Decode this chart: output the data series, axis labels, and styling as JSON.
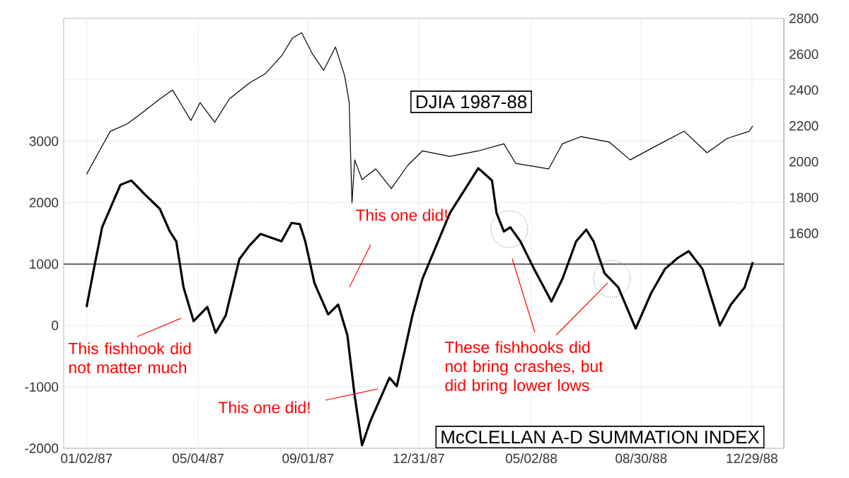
{
  "chart_data": {
    "type": "line",
    "xlim": [
      "1986-12-08",
      "1989-02-02"
    ],
    "xticks": [
      {
        "value": "1987-01-02",
        "label": "01/02/87"
      },
      {
        "value": "1987-05-04",
        "label": "05/04/87"
      },
      {
        "value": "1987-09-01",
        "label": "09/01/87"
      },
      {
        "value": "1987-12-31",
        "label": "12/31/87"
      },
      {
        "value": "1988-05-02",
        "label": "05/02/88"
      },
      {
        "value": "1988-08-30",
        "label": "08/30/88"
      },
      {
        "value": "1988-12-29",
        "label": "12/29/88"
      }
    ],
    "ylim": [
      -2000,
      5000
    ],
    "yticks": [
      -2000,
      -1000,
      0,
      1000,
      2000,
      3000,
      {
        "value": 4000,
        "label": null
      }
    ],
    "y2lim": [
      400,
      2800
    ],
    "y2ticks": [
      1600,
      1800,
      2000,
      2200,
      2400,
      2600,
      2800
    ],
    "grid": true,
    "ref_lines": [
      {
        "axis": "y",
        "value": 1000,
        "color": "#333333"
      }
    ],
    "series": [
      {
        "name": "McCLELLAN A-D SUMMATION INDEX",
        "color": "#000000",
        "x": [
          "1987-01-02",
          "1987-01-11",
          "1987-01-16",
          "1987-01-19",
          "1987-02-08",
          "1987-02-20",
          "1987-03-07",
          "1987-03-23",
          "1987-04-03",
          "1987-04-10",
          "1987-04-18",
          "1987-04-29",
          "1987-05-14",
          "1987-05-23",
          "1987-06-03",
          "1987-06-18",
          "1987-06-29",
          "1987-07-11",
          "1987-08-03",
          "1987-08-14",
          "1987-08-23",
          "1987-08-29",
          "1987-09-08",
          "1987-09-23",
          "1987-10-04",
          "1987-10-14",
          "1987-10-22",
          "1987-10-30",
          "1987-11-08",
          "1987-11-29",
          "1987-12-07",
          "1987-12-24",
          "1988-01-04",
          "1988-02-03",
          "1988-03-05",
          "1988-03-20",
          "1988-03-25",
          "1988-04-02",
          "1988-04-09",
          "1988-04-20",
          "1988-05-05",
          "1988-05-24",
          "1988-06-05",
          "1988-06-20",
          "1988-07-01",
          "1988-07-09",
          "1988-07-21",
          "1988-08-05",
          "1988-08-24",
          "1988-09-10",
          "1988-09-25",
          "1988-10-09",
          "1988-10-21",
          "1988-11-05",
          "1988-11-24",
          "1988-12-06",
          "1988-12-21",
          "1988-12-30"
        ],
        "values": [
          300,
          1000,
          1370,
          1600,
          2290,
          2360,
          2130,
          1900,
          1530,
          1370,
          620,
          70,
          300,
          -120,
          160,
          1080,
          1300,
          1490,
          1370,
          1670,
          1650,
          1370,
          690,
          180,
          340,
          -160,
          -1150,
          -1950,
          -1560,
          -850,
          -990,
          160,
          760,
          1830,
          2560,
          2360,
          1830,
          1530,
          1600,
          1370,
          920,
          390,
          760,
          1370,
          1560,
          1370,
          850,
          620,
          -50,
          530,
          920,
          1100,
          1210,
          920,
          0,
          340,
          620,
          1030
        ]
      },
      {
        "name": "DJIA  1987-88",
        "color": "#000000",
        "axis": "y2",
        "x": [
          "1987-01-02",
          "1987-01-16",
          "1987-01-28",
          "1987-02-15",
          "1987-03-03",
          "1987-03-23",
          "1987-04-06",
          "1987-04-26",
          "1987-05-06",
          "1987-05-22",
          "1987-06-07",
          "1987-06-29",
          "1987-07-16",
          "1987-08-03",
          "1987-08-15",
          "1987-08-25",
          "1987-09-06",
          "1987-09-18",
          "1987-10-01",
          "1987-10-11",
          "1987-10-16",
          "1987-10-19",
          "1987-10-22",
          "1987-10-30",
          "1987-11-14",
          "1987-12-01",
          "1987-12-19",
          "1988-01-04",
          "1988-02-03",
          "1988-03-05",
          "1988-04-02",
          "1988-04-15",
          "1988-05-21",
          "1988-06-05",
          "1988-06-25",
          "1988-07-26",
          "1988-08-18",
          "1988-09-16",
          "1988-10-16",
          "1988-11-10",
          "1988-12-02",
          "1988-12-26",
          "1988-12-30"
        ],
        "values": [
          1930,
          2060,
          2170,
          2210,
          2270,
          2350,
          2400,
          2230,
          2330,
          2220,
          2350,
          2440,
          2490,
          2590,
          2690,
          2720,
          2600,
          2510,
          2640,
          2480,
          2330,
          1770,
          2010,
          1900,
          1960,
          1850,
          1980,
          2060,
          2030,
          2060,
          2100,
          1990,
          1960,
          2100,
          2140,
          2110,
          2010,
          2090,
          2170,
          2050,
          2130,
          2170,
          2200
        ]
      }
    ],
    "annotations": [
      "This one did!",
      "This fishhook did not matter much",
      "This one did!",
      {
        "text": "These fishhooks did not bring crashes, but did bring lower lows",
        "x": "1988-07-29",
        "y": 760
      }
    ]
  }
}
